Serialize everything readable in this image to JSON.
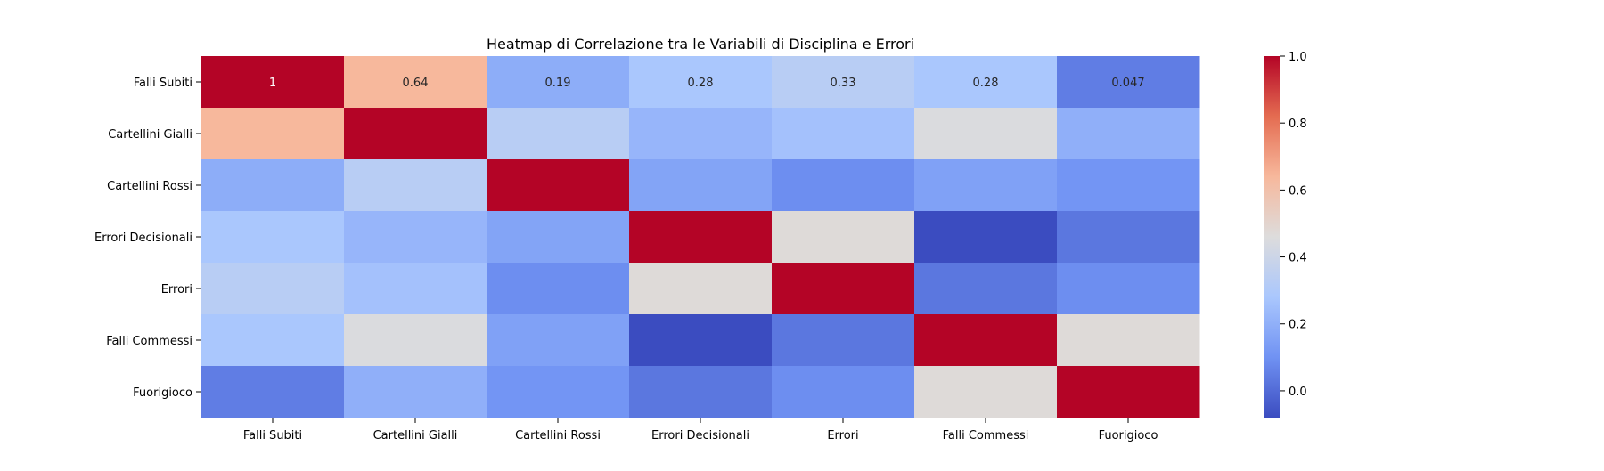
{
  "chart_data": {
    "type": "heatmap",
    "title": "Heatmap di Correlazione tra le Variabili di Disciplina e Errori",
    "rows": [
      "Falli Subiti",
      "Cartellini Gialli",
      "Cartellini Rossi",
      "Errori Decisionali",
      "Errori",
      "Falli Commessi",
      "Fuorigioco"
    ],
    "columns": [
      "Falli Subiti",
      "Cartellini Gialli",
      "Cartellini Rossi",
      "Errori Decisionali",
      "Errori",
      "Falli Commessi",
      "Fuorigioco"
    ],
    "values": [
      [
        1.0,
        0.64,
        0.19,
        0.28,
        0.33,
        0.28,
        0.047
      ],
      [
        0.64,
        1.0,
        0.33,
        0.22,
        0.26,
        0.45,
        0.2
      ],
      [
        0.19,
        0.33,
        1.0,
        0.16,
        0.09,
        0.15,
        0.11
      ],
      [
        0.28,
        0.22,
        0.16,
        1.0,
        0.47,
        -0.08,
        0.03
      ],
      [
        0.33,
        0.26,
        0.09,
        0.47,
        1.0,
        0.03,
        0.09
      ],
      [
        0.28,
        0.45,
        0.15,
        -0.08,
        0.03,
        1.0,
        0.47
      ],
      [
        0.047,
        0.2,
        0.11,
        0.03,
        0.09,
        0.47,
        1.0
      ]
    ],
    "annotations": [
      {
        "row": 0,
        "col": 0,
        "text": "1"
      },
      {
        "row": 0,
        "col": 1,
        "text": "0.64"
      },
      {
        "row": 0,
        "col": 2,
        "text": "0.19"
      },
      {
        "row": 0,
        "col": 3,
        "text": "0.28"
      },
      {
        "row": 0,
        "col": 4,
        "text": "0.33"
      },
      {
        "row": 0,
        "col": 5,
        "text": "0.28"
      },
      {
        "row": 0,
        "col": 6,
        "text": "0.047"
      }
    ],
    "colorbar": {
      "range": [
        -0.08,
        1.0
      ],
      "ticks": [
        0.0,
        0.2,
        0.4,
        0.6,
        0.8,
        1.0
      ],
      "tick_labels": [
        "0.0",
        "0.2",
        "0.4",
        "0.6",
        "0.8",
        "1.0"
      ],
      "colormap": "coolwarm",
      "colormap_stops": [
        "#3b4cc0",
        "#7092f3",
        "#aac7fd",
        "#dddcdc",
        "#f7b89c",
        "#e46c51",
        "#b40426"
      ]
    }
  }
}
